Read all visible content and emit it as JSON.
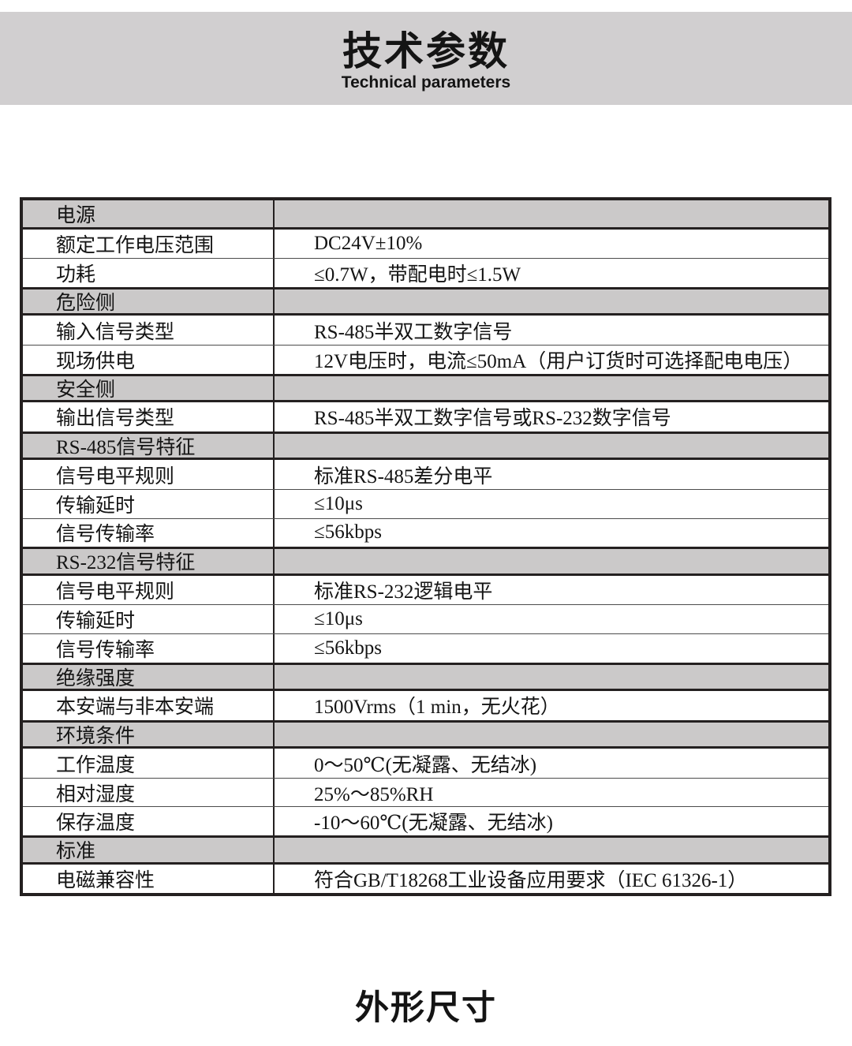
{
  "header": {
    "title_cn": "技术参数",
    "title_en": "Technical parameters",
    "banner_color": "#d1cfd0"
  },
  "footer": {
    "heading": "外形尺寸"
  },
  "colors": {
    "section_row_bg": "#cbc9c9",
    "table_border": "#242020"
  },
  "table": {
    "columns": [
      "parameter",
      "value"
    ],
    "rows": [
      {
        "type": "section",
        "label": "电源",
        "value": ""
      },
      {
        "type": "data",
        "label": "额定工作电压范围",
        "value": "DC24V±10%"
      },
      {
        "type": "data",
        "label": "功耗",
        "value": "≤0.7W，带配电时≤1.5W"
      },
      {
        "type": "section",
        "label": "危险侧",
        "value": ""
      },
      {
        "type": "data",
        "label": "输入信号类型",
        "value": "RS-485半双工数字信号"
      },
      {
        "type": "data",
        "label": "现场供电",
        "value": "12V电压时，电流≤50mA（用户订货时可选择配电电压）"
      },
      {
        "type": "section",
        "label": "安全侧",
        "value": ""
      },
      {
        "type": "data",
        "label": "输出信号类型",
        "value": "RS-485半双工数字信号或RS-232数字信号"
      },
      {
        "type": "section",
        "label": "RS-485信号特征",
        "value": ""
      },
      {
        "type": "data",
        "label": "信号电平规则",
        "value": "标准RS-485差分电平"
      },
      {
        "type": "data",
        "label": "传输延时",
        "value": "≤10μs"
      },
      {
        "type": "data",
        "label": "信号传输率",
        "value": "≤56kbps"
      },
      {
        "type": "section",
        "label": "RS-232信号特征",
        "value": ""
      },
      {
        "type": "data",
        "label": "信号电平规则",
        "value": "标准RS-232逻辑电平"
      },
      {
        "type": "data",
        "label": "传输延时",
        "value": "≤10μs"
      },
      {
        "type": "data",
        "label": "信号传输率",
        "value": "≤56kbps"
      },
      {
        "type": "section",
        "label": "绝缘强度",
        "value": ""
      },
      {
        "type": "data",
        "label": "本安端与非本安端",
        "value": "1500Vrms（1 min，无火花）"
      },
      {
        "type": "section",
        "label": "环境条件",
        "value": ""
      },
      {
        "type": "data",
        "label": "工作温度",
        "value": "0～50℃(无凝露、无结冰)"
      },
      {
        "type": "data",
        "label": "相对湿度",
        "value": "25%～85%RH"
      },
      {
        "type": "data",
        "label": "保存温度",
        "value": "-10～60℃(无凝露、无结冰)"
      },
      {
        "type": "section",
        "label": "标准",
        "value": ""
      },
      {
        "type": "data",
        "label": "电磁兼容性",
        "value": "符合GB/T18268工业设备应用要求（IEC 61326-1）"
      }
    ]
  }
}
